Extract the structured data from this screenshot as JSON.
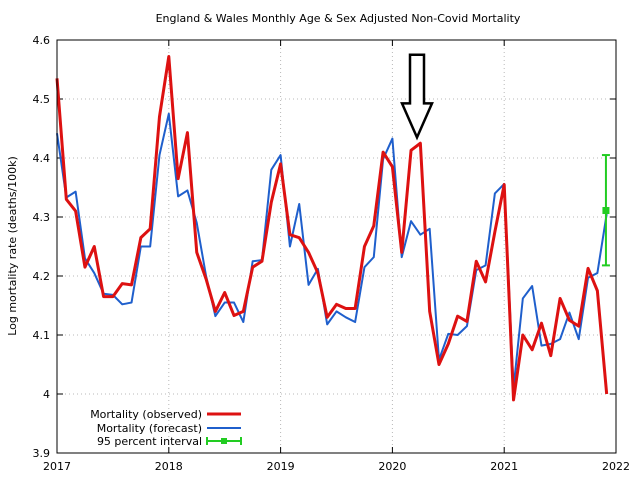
{
  "chart_data": {
    "type": "line",
    "title": "England & Wales Monthly Age & Sex Adjusted Non-Covid Mortality",
    "xlabel": "",
    "ylabel": "Log mortality rate (deaths/100k)",
    "xlim": [
      2017,
      2022
    ],
    "ylim": [
      3.9,
      4.6
    ],
    "x_ticks": [
      "2017",
      "2018",
      "2019",
      "2020",
      "2021",
      "2022"
    ],
    "y_ticks": [
      "3.9",
      "4",
      "4.1",
      "4.2",
      "4.3",
      "4.4",
      "4.5",
      "4.6"
    ],
    "grid": true,
    "legend_position": "bottom-left",
    "x_start": 2017.0,
    "x_step": 0.0833333,
    "series": [
      {
        "name": "Mortality (observed)",
        "color": "#dd1111",
        "values": [
          4.535,
          4.33,
          4.31,
          4.215,
          4.25,
          4.165,
          4.165,
          4.187,
          4.185,
          4.265,
          4.28,
          4.47,
          4.572,
          4.365,
          4.443,
          4.24,
          4.195,
          4.14,
          4.172,
          4.133,
          4.14,
          4.215,
          4.225,
          4.325,
          4.39,
          4.27,
          4.265,
          4.24,
          4.205,
          4.13,
          4.152,
          4.145,
          4.145,
          4.25,
          4.285,
          4.41,
          4.385,
          4.24,
          4.413,
          4.425,
          4.14,
          4.05,
          4.085,
          4.132,
          4.123,
          4.225,
          4.19,
          4.275,
          4.355,
          3.99,
          4.1,
          4.075,
          4.12,
          4.065,
          4.162,
          4.125,
          4.115,
          4.213,
          4.175,
          4.0
        ]
      },
      {
        "name": "Mortality (forecast)",
        "color": "#1f5fcc",
        "values": [
          4.442,
          4.333,
          4.343,
          4.23,
          4.205,
          4.17,
          4.168,
          4.152,
          4.155,
          4.25,
          4.25,
          4.405,
          4.475,
          4.335,
          4.345,
          4.29,
          4.2,
          4.132,
          4.155,
          4.155,
          4.122,
          4.225,
          4.227,
          4.38,
          4.405,
          4.25,
          4.322,
          4.185,
          4.212,
          4.118,
          4.14,
          4.13,
          4.122,
          4.215,
          4.232,
          4.398,
          4.433,
          4.232,
          4.293,
          4.27,
          4.28,
          4.058,
          4.102,
          4.1,
          4.115,
          4.21,
          4.218,
          4.34,
          4.356,
          4.01,
          4.162,
          4.183,
          4.082,
          4.085,
          4.093,
          4.138,
          4.093,
          4.197,
          4.205,
          4.305
        ]
      }
    ],
    "interval": {
      "name": "95 percent interval",
      "color": "#22cc22",
      "x": 2021.91,
      "center": 4.311,
      "low": 4.218,
      "high": 4.405
    },
    "annotation": {
      "type": "arrow-down",
      "x": 2020.22,
      "y_top": 4.575,
      "y_tip": 4.435
    }
  }
}
